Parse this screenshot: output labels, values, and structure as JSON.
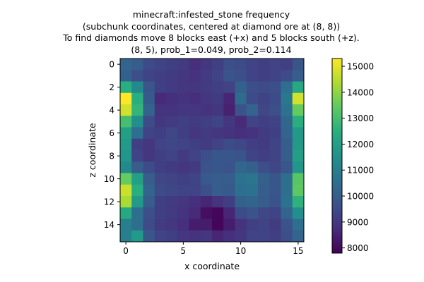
{
  "chart_data": {
    "type": "heatmap",
    "title_lines": [
      "minecraft:infested_stone frequency",
      "(subchunk coordinates, centered at diamond ore at (8, 8))",
      "To find diamonds move 8 blocks east (+x) and 5 blocks south (+z).",
      "(8, 5), prob_1=0.049, prob_2=0.114"
    ],
    "xlabel": "x coordinate",
    "ylabel": "z coordinate",
    "x_ticks": [
      0,
      5,
      10,
      15
    ],
    "y_ticks": [
      0,
      2,
      4,
      6,
      8,
      10,
      12,
      14
    ],
    "colorbar": {
      "min": 7800,
      "max": 15300,
      "ticks": [
        8000,
        9000,
        10000,
        11000,
        12000,
        13000,
        14000,
        15000
      ],
      "colormap": "viridis"
    },
    "rows": 16,
    "cols": 16,
    "values": [
      [
        10200,
        10000,
        9500,
        9300,
        9200,
        9100,
        8800,
        9000,
        9200,
        9600,
        9500,
        9300,
        9200,
        9300,
        9200,
        9800
      ],
      [
        10100,
        9600,
        9300,
        9200,
        9100,
        9000,
        8900,
        9100,
        9300,
        9700,
        9600,
        9300,
        9200,
        9300,
        9500,
        10000
      ],
      [
        12500,
        11300,
        9800,
        9200,
        9100,
        9000,
        9000,
        9100,
        9200,
        9300,
        10100,
        9600,
        9500,
        9600,
        10500,
        12300
      ],
      [
        15300,
        12500,
        9900,
        8700,
        8800,
        8900,
        8800,
        9000,
        9100,
        8600,
        10400,
        9500,
        9300,
        9500,
        10800,
        14800
      ],
      [
        14800,
        12700,
        10200,
        8900,
        8900,
        9000,
        9000,
        8900,
        9000,
        8500,
        9700,
        10200,
        9400,
        9600,
        10600,
        13500
      ],
      [
        13000,
        11500,
        9500,
        9000,
        9100,
        9200,
        9100,
        9200,
        9300,
        9000,
        8700,
        9300,
        9200,
        9300,
        10300,
        12500
      ],
      [
        12000,
        10500,
        9300,
        9200,
        9400,
        9200,
        9000,
        9100,
        9000,
        8900,
        8800,
        8900,
        9100,
        9200,
        10200,
        11800
      ],
      [
        11800,
        9200,
        9000,
        9300,
        9400,
        9300,
        9200,
        9100,
        9300,
        9500,
        9400,
        9200,
        9100,
        9300,
        10000,
        11800
      ],
      [
        11700,
        9300,
        9000,
        9200,
        9300,
        9100,
        9300,
        9600,
        9800,
        9800,
        9700,
        9300,
        9200,
        9300,
        10000,
        12000
      ],
      [
        11300,
        10000,
        9500,
        9200,
        9100,
        9000,
        9100,
        9700,
        9800,
        9700,
        10300,
        10100,
        9600,
        9400,
        9800,
        11700
      ],
      [
        13500,
        12000,
        10000,
        9400,
        9300,
        9200,
        9300,
        9900,
        10000,
        10000,
        10600,
        10700,
        10100,
        9800,
        10500,
        13300
      ],
      [
        14700,
        12500,
        10200,
        9500,
        9400,
        9300,
        9300,
        9600,
        10000,
        9900,
        10500,
        10600,
        10000,
        9800,
        10500,
        13400
      ],
      [
        14300,
        11800,
        10000,
        9200,
        9100,
        9000,
        8800,
        8600,
        8900,
        9200,
        10100,
        10200,
        10000,
        9700,
        10600,
        12600
      ],
      [
        12300,
        10500,
        9600,
        9200,
        9100,
        8900,
        8700,
        8100,
        7900,
        8600,
        9500,
        9700,
        9400,
        9300,
        10200,
        11500
      ],
      [
        11000,
        10500,
        9500,
        9100,
        9000,
        8800,
        8400,
        8400,
        7900,
        8400,
        8900,
        9200,
        9300,
        9100,
        9700,
        10500
      ],
      [
        11000,
        11800,
        9800,
        9300,
        9200,
        9000,
        8900,
        9000,
        8600,
        8800,
        9000,
        9300,
        9300,
        9200,
        9600,
        10200
      ]
    ]
  }
}
